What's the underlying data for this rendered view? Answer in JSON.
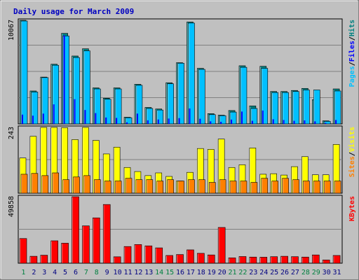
{
  "title": "Daily usage for March 2009",
  "colors": {
    "background": "#c0c0c0",
    "plot_bg": "#c0c0c0",
    "title": "#0000c0",
    "hits": "#008080",
    "files": "#0000ff",
    "pages": "#00c0ff",
    "visits": "#ffff00",
    "sites": "#ff8000",
    "kbytes": "#ff0000",
    "weekend_label": "#008040",
    "weekday_label": "#000080"
  },
  "chart_data": [
    {
      "type": "bar",
      "panel": "requests",
      "y_max_label": "10067",
      "ylim": [
        0,
        10067
      ],
      "legend": [
        "Pages",
        "/",
        "Files",
        "/",
        "Hits"
      ],
      "categories": [
        "1",
        "2",
        "3",
        "4",
        "5",
        "6",
        "7",
        "8",
        "9",
        "10",
        "11",
        "12",
        "13",
        "14",
        "15",
        "16",
        "17",
        "18",
        "19",
        "20",
        "21",
        "22",
        "23",
        "24",
        "25",
        "26",
        "27",
        "28",
        "29",
        "30",
        "31"
      ],
      "series": [
        {
          "name": "Hits",
          "values": [
            10067,
            3200,
            4550,
            5800,
            8800,
            6600,
            7300,
            3500,
            2500,
            3500,
            650,
            3850,
            1600,
            1450,
            4000,
            5950,
            9900,
            5400,
            1000,
            850,
            1300,
            5650,
            1750,
            5600,
            3150,
            3150,
            3250,
            3450,
            2350,
            300,
            3400
          ]
        },
        {
          "name": "Files",
          "values": [
            900,
            800,
            1000,
            1900,
            8600,
            2400,
            1350,
            1050,
            620,
            580,
            150,
            1000,
            350,
            430,
            520,
            560,
            1500,
            500,
            250,
            200,
            420,
            1200,
            300,
            1300,
            450,
            380,
            300,
            340,
            250,
            100,
            380
          ]
        },
        {
          "name": "Pages",
          "values": [
            10000,
            3100,
            4500,
            5700,
            8550,
            6450,
            7100,
            3400,
            2400,
            3400,
            600,
            3750,
            1500,
            1350,
            3900,
            5900,
            9800,
            5300,
            900,
            800,
            1150,
            5500,
            1500,
            5400,
            3050,
            3050,
            3150,
            3300,
            3300,
            250,
            3200
          ]
        }
      ]
    },
    {
      "type": "bar",
      "panel": "visits",
      "y_max_label": "243",
      "ylim": [
        0,
        243
      ],
      "legend": [
        "Sites",
        "/",
        "Visits"
      ],
      "categories": [
        "1",
        "2",
        "3",
        "4",
        "5",
        "6",
        "7",
        "8",
        "9",
        "10",
        "11",
        "12",
        "13",
        "14",
        "15",
        "16",
        "17",
        "18",
        "19",
        "20",
        "21",
        "22",
        "23",
        "24",
        "25",
        "26",
        "27",
        "28",
        "29",
        "30",
        "31"
      ],
      "series": [
        {
          "name": "Visits",
          "values": [
            130,
            210,
            243,
            243,
            242,
            198,
            243,
            195,
            145,
            170,
            95,
            80,
            65,
            75,
            62,
            45,
            77,
            165,
            162,
            200,
            95,
            105,
            167,
            70,
            72,
            67,
            98,
            135,
            68,
            68,
            180
          ]
        },
        {
          "name": "Sites",
          "values": [
            70,
            73,
            65,
            75,
            50,
            60,
            65,
            50,
            45,
            45,
            55,
            50,
            50,
            45,
            50,
            45,
            50,
            50,
            40,
            50,
            45,
            45,
            40,
            55,
            45,
            55,
            50,
            45,
            45,
            45,
            45
          ]
        }
      ]
    },
    {
      "type": "bar",
      "panel": "kbytes",
      "y_max_label": "49858",
      "ylim": [
        0,
        49858
      ],
      "legend": [
        "KBytes"
      ],
      "categories": [
        "1",
        "2",
        "3",
        "4",
        "5",
        "6",
        "7",
        "8",
        "9",
        "10",
        "11",
        "12",
        "13",
        "14",
        "15",
        "16",
        "17",
        "18",
        "19",
        "20",
        "21",
        "22",
        "23",
        "24",
        "25",
        "26",
        "27",
        "28",
        "29",
        "30",
        "31"
      ],
      "series": [
        {
          "name": "KBytes",
          "values": [
            18500,
            5200,
            6000,
            16800,
            15000,
            49858,
            28000,
            34000,
            44000,
            4800,
            12500,
            14000,
            13000,
            11500,
            5800,
            6500,
            10000,
            7400,
            6200,
            26800,
            4000,
            5000,
            4600,
            4500,
            4900,
            5200,
            4900,
            4600,
            6200,
            2400,
            5800
          ]
        }
      ]
    }
  ],
  "weekend_days": [
    "1",
    "7",
    "8",
    "14",
    "15",
    "21",
    "22",
    "28",
    "29"
  ]
}
